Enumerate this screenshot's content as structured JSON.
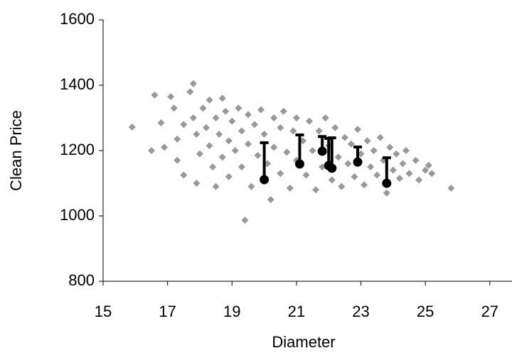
{
  "chart_data": {
    "type": "scatter",
    "x_label": "Diameter",
    "y_label": "Clean Price",
    "xlim": [
      15,
      27.6
    ],
    "xticks": [
      15,
      17,
      19,
      21,
      23,
      25,
      27
    ],
    "ylim": [
      800,
      1600
    ],
    "yticks": [
      800,
      1000,
      1200,
      1400,
      1600
    ],
    "series": [
      {
        "marker": "diamond",
        "color": "#999999",
        "x": [
          15.9,
          16.5,
          16.6,
          16.8,
          16.9,
          17.1,
          17.2,
          17.3,
          17.3,
          17.5,
          17.5,
          17.7,
          17.8,
          17.8,
          17.9,
          17.9,
          18.0,
          18.1,
          18.2,
          18.3,
          18.3,
          18.4,
          18.5,
          18.5,
          18.6,
          18.7,
          18.7,
          18.8,
          18.9,
          18.9,
          19.0,
          19.1,
          19.2,
          19.3,
          19.3,
          19.4,
          19.5,
          19.5,
          19.6,
          19.7,
          19.8,
          19.9,
          20.0,
          20.1,
          20.2,
          20.3,
          20.3,
          20.5,
          20.5,
          20.6,
          20.7,
          20.8,
          20.9,
          21.0,
          21.0,
          21.2,
          21.3,
          21.4,
          21.5,
          21.6,
          21.7,
          21.8,
          21.9,
          22.0,
          22.1,
          22.2,
          22.3,
          22.4,
          22.5,
          22.6,
          22.7,
          22.8,
          22.9,
          23.0,
          23.1,
          23.2,
          23.3,
          23.4,
          23.5,
          23.6,
          23.7,
          23.8,
          23.9,
          24.0,
          24.1,
          24.2,
          24.3,
          24.4,
          24.5,
          24.7,
          24.8,
          25.0,
          25.1,
          25.2,
          25.8
        ],
        "values": [
          1272,
          1200,
          1370,
          1285,
          1210,
          1365,
          1330,
          1235,
          1170,
          1280,
          1125,
          1380,
          1405,
          1300,
          1250,
          1100,
          1190,
          1330,
          1270,
          1355,
          1215,
          1150,
          1300,
          1090,
          1250,
          1360,
          1180,
          1320,
          1230,
          1120,
          1290,
          1200,
          1330,
          1260,
          1150,
          987,
          1310,
          1220,
          1090,
          1280,
          1185,
          1325,
          1250,
          1160,
          1050,
          1300,
          1210,
          1270,
          1130,
          1320,
          1195,
          1085,
          1260,
          1300,
          1170,
          1230,
          1125,
          1290,
          1200,
          1080,
          1260,
          1150,
          1300,
          1215,
          1110,
          1270,
          1180,
          1090,
          1240,
          1160,
          1220,
          1120,
          1265,
          1190,
          1095,
          1230,
          1150,
          1200,
          1125,
          1240,
          1170,
          1070,
          1210,
          1140,
          1190,
          1115,
          1160,
          1200,
          1130,
          1170,
          1110,
          1140,
          1155,
          1130,
          1085
        ]
      },
      {
        "marker": "circle",
        "color": "#000000",
        "x": [
          20.0,
          21.1,
          21.8,
          22.0,
          22.1,
          22.9,
          23.8
        ],
        "values": [
          1111,
          1159,
          1198,
          1154,
          1146,
          1165,
          1100
        ],
        "errors": [
          113,
          89,
          45,
          83,
          93,
          46,
          78
        ]
      }
    ]
  }
}
